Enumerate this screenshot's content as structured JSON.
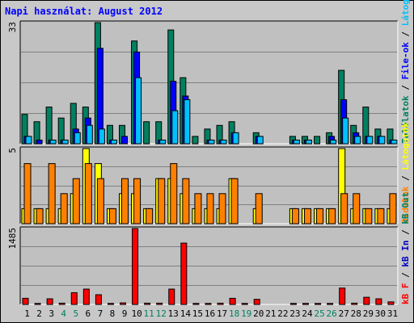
{
  "title": "Napi használat: August 2012",
  "colors": {
    "hits": "#008060",
    "files": "#0000ff",
    "files_light": "#00c0ff",
    "pages": "#ff8000",
    "visits": "#ffff00",
    "kb_f": "#ff0000",
    "kb_in": "#0000c0",
    "kb_out": "#008060",
    "weekday": "#000000",
    "weekend": "#008060"
  },
  "right_labels": {
    "panel1": [
      {
        "text": "Találatok",
        "color": "#008060"
      },
      {
        "text": " / ",
        "color": "#000000"
      },
      {
        "text": "File-ok",
        "color": "#0000ff"
      },
      {
        "text": " / ",
        "color": "#000000"
      },
      {
        "text": "Látogató",
        "color": "#00c0ff"
      }
    ],
    "panel2": [
      {
        "text": "Oldalak",
        "color": "#ff8000"
      },
      {
        "text": " / ",
        "color": "#000000"
      },
      {
        "text": "Látogatók",
        "color": "#ffff00"
      }
    ],
    "panel3": [
      {
        "text": "kB F",
        "color": "#ff0000"
      },
      {
        "text": " / ",
        "color": "#000000"
      },
      {
        "text": "kB In",
        "color": "#0000c0"
      },
      {
        "text": " / ",
        "color": "#000000"
      },
      {
        "text": "kB Out",
        "color": "#008060"
      }
    ]
  },
  "chart_data": [
    {
      "type": "bar",
      "panel": "hits-files-visitors",
      "ymax_label": "33",
      "ylim": [
        0,
        33
      ],
      "categories": [
        "1",
        "2",
        "3",
        "4",
        "5",
        "6",
        "7",
        "8",
        "9",
        "10",
        "11",
        "12",
        "13",
        "14",
        "15",
        "16",
        "17",
        "18",
        "19",
        "20",
        "21",
        "22",
        "23",
        "24",
        "25",
        "26",
        "27",
        "28",
        "29",
        "30",
        "31"
      ],
      "weekend": [
        "4",
        "5",
        "11",
        "12",
        "18",
        "19",
        "25",
        "26"
      ],
      "series": [
        {
          "key": "hits",
          "values": [
            8,
            6,
            10,
            7,
            11,
            10,
            33,
            5,
            5,
            28,
            6,
            6,
            31,
            18,
            2,
            4,
            5,
            6,
            0,
            3,
            0,
            0,
            2,
            2,
            2,
            3,
            20,
            5,
            10,
            4,
            4
          ]
        },
        {
          "key": "files",
          "values": [
            2,
            1,
            1,
            1,
            4,
            7,
            26,
            1,
            2,
            25,
            0,
            1,
            17,
            13,
            0,
            1,
            1,
            3,
            0,
            2,
            0,
            0,
            1,
            1,
            0,
            2,
            12,
            3,
            2,
            2,
            1
          ]
        },
        {
          "key": "visitors",
          "values": [
            2,
            0,
            1,
            1,
            3,
            5,
            4,
            1,
            0,
            18,
            0,
            1,
            9,
            12,
            0,
            1,
            1,
            3,
            0,
            2,
            0,
            0,
            1,
            1,
            0,
            1,
            7,
            2,
            2,
            2,
            1
          ]
        }
      ]
    },
    {
      "type": "bar",
      "panel": "pages-visits",
      "ymax_label": "5",
      "ylim": [
        0,
        5
      ],
      "categories": [
        "1",
        "2",
        "3",
        "4",
        "5",
        "6",
        "7",
        "8",
        "9",
        "10",
        "11",
        "12",
        "13",
        "14",
        "15",
        "16",
        "17",
        "18",
        "19",
        "20",
        "21",
        "22",
        "23",
        "24",
        "25",
        "26",
        "27",
        "28",
        "29",
        "30",
        "31"
      ],
      "series": [
        {
          "key": "pages",
          "values": [
            4,
            1,
            4,
            2,
            3,
            4,
            3,
            1,
            3,
            3,
            1,
            3,
            4,
            3,
            2,
            2,
            2,
            3,
            0,
            2,
            0,
            0,
            1,
            1,
            1,
            1,
            2,
            2,
            1,
            1,
            2
          ]
        },
        {
          "key": "visits",
          "values": [
            1,
            1,
            1,
            1,
            2,
            5,
            4,
            1,
            2,
            2,
            1,
            3,
            3,
            2,
            1,
            1,
            1,
            3,
            0,
            1,
            0,
            0,
            1,
            1,
            1,
            1,
            5,
            1,
            1,
            1,
            1
          ]
        }
      ]
    },
    {
      "type": "bar",
      "panel": "kbytes",
      "ymax_label": "1485",
      "ylim": [
        0,
        1485
      ],
      "categories": [
        "1",
        "2",
        "3",
        "4",
        "5",
        "6",
        "7",
        "8",
        "9",
        "10",
        "11",
        "12",
        "13",
        "14",
        "15",
        "16",
        "17",
        "18",
        "19",
        "20",
        "21",
        "22",
        "23",
        "24",
        "25",
        "26",
        "27",
        "28",
        "29",
        "30",
        "31"
      ],
      "series": [
        {
          "key": "kb_f",
          "values": [
            120,
            20,
            110,
            25,
            230,
            300,
            190,
            20,
            30,
            1485,
            25,
            25,
            300,
            1200,
            20,
            20,
            25,
            120,
            20,
            100,
            0,
            0,
            20,
            20,
            20,
            20,
            320,
            25,
            140,
            110,
            50
          ]
        }
      ]
    }
  ]
}
